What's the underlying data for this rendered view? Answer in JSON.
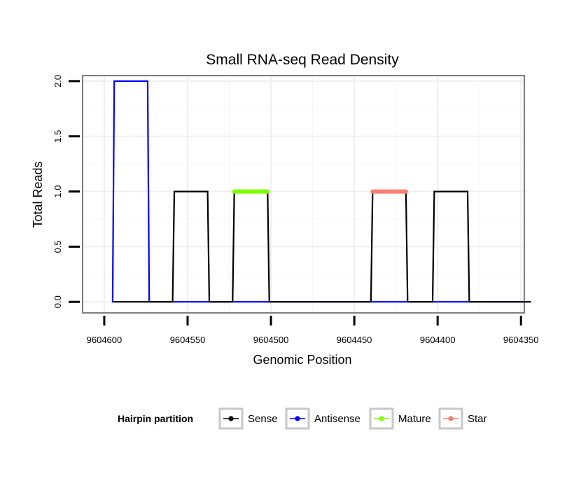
{
  "chart_data": {
    "type": "line",
    "title": "Small RNA-seq Read Density",
    "xlabel": "Genomic Position",
    "ylabel": "Total Reads",
    "xlim": [
      9604613,
      9604348
    ],
    "ylim": [
      -0.1,
      2.05
    ],
    "x_ticks": [
      9604600,
      9604550,
      9604500,
      9604450,
      9604400,
      9604350
    ],
    "y_ticks": [
      0.0,
      0.5,
      1.0,
      1.5,
      2.0
    ],
    "y_tick_labels": [
      "0.0",
      "0.5",
      "1.0",
      "1.5",
      "2.0"
    ],
    "grid": true,
    "legend_position": "bottom",
    "legend_title": "Hairpin partition",
    "series": [
      {
        "name": "Sense",
        "color": "#000000",
        "points": [
          [
            9604594,
            0
          ],
          [
            9604559,
            0
          ],
          [
            9604558,
            1
          ],
          [
            9604538,
            1
          ],
          [
            9604537,
            0
          ],
          [
            9604523,
            0
          ],
          [
            9604522,
            1
          ],
          [
            9604502,
            1
          ],
          [
            9604501,
            0
          ],
          [
            9604440,
            0
          ],
          [
            9604439,
            1
          ],
          [
            9604419,
            1
          ],
          [
            9604418,
            0
          ],
          [
            9604403,
            0
          ],
          [
            9604402,
            1
          ],
          [
            9604382,
            1
          ],
          [
            9604381,
            0
          ],
          [
            9604344,
            0
          ]
        ]
      },
      {
        "name": "Antisense",
        "color": "#0000ff",
        "points": [
          [
            9604594,
            0
          ],
          [
            9604595,
            0
          ],
          [
            9604594,
            2
          ],
          [
            9604574,
            2
          ],
          [
            9604573,
            0
          ],
          [
            9604344,
            0
          ]
        ]
      },
      {
        "name": "Mature",
        "color": "#7fff00",
        "points": [
          [
            9604522,
            1
          ],
          [
            9604502,
            1
          ]
        ]
      },
      {
        "name": "Star",
        "color": "#fa8072",
        "points": [
          [
            9604439,
            1
          ],
          [
            9604419,
            1
          ]
        ]
      }
    ]
  }
}
